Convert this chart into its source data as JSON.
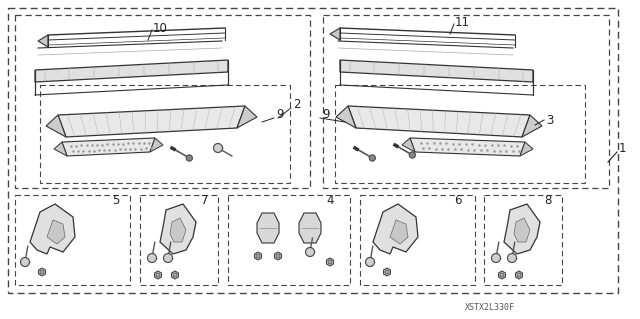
{
  "bg_color": "#ffffff",
  "watermark": "XSTX2L330F",
  "gray_line": "#333333",
  "gray_fill": "#e8e8e8",
  "gray_dark": "#888888",
  "dash_color": "#555555"
}
